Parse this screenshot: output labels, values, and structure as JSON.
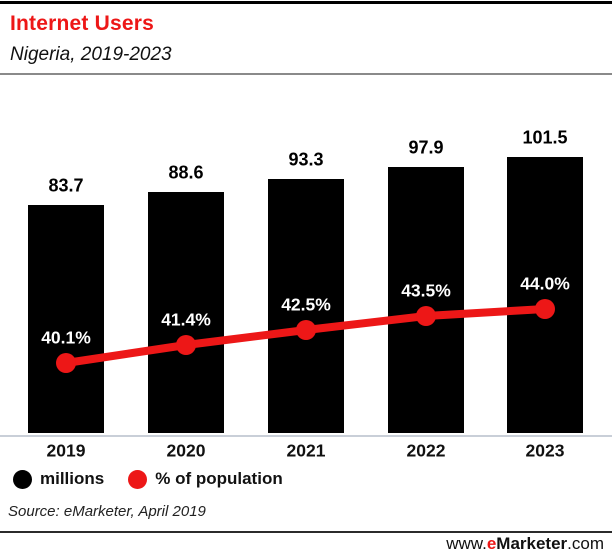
{
  "header": {
    "title": "Internet Users",
    "subtitle": "Nigeria, 2019-2023"
  },
  "chart_data": {
    "type": "bar",
    "title": "Internet Users",
    "subtitle": "Nigeria, 2019-2023",
    "categories": [
      "2019",
      "2020",
      "2021",
      "2022",
      "2023"
    ],
    "series": [
      {
        "name": "millions",
        "type": "bar",
        "color": "#000000",
        "values": [
          83.7,
          88.6,
          93.3,
          97.9,
          101.5
        ],
        "labels": [
          "83.7",
          "88.6",
          "93.3",
          "97.9",
          "101.5"
        ]
      },
      {
        "name": "% of population",
        "type": "line",
        "color": "#ed1717",
        "values": [
          40.1,
          41.4,
          42.5,
          43.5,
          44.0
        ],
        "labels": [
          "40.1%",
          "41.4%",
          "42.5%",
          "43.5%",
          "44.0%"
        ]
      }
    ],
    "xlabel": "",
    "ylabel": "",
    "grid": false,
    "legend_position": "bottom",
    "value_labels_shown": true
  },
  "legend": {
    "items": [
      {
        "label": "millions",
        "color": "#000000"
      },
      {
        "label": "% of population",
        "color": "#ed1717"
      }
    ]
  },
  "source": {
    "text": "Source: eMarketer, April 2019"
  },
  "footer": {
    "www": "www.",
    "e": "e",
    "brand": "Marketer",
    "com": ".com"
  },
  "colors": {
    "accent_red": "#ed1717",
    "bar_black": "#000000",
    "axis_gray": "#c9cfd8"
  }
}
